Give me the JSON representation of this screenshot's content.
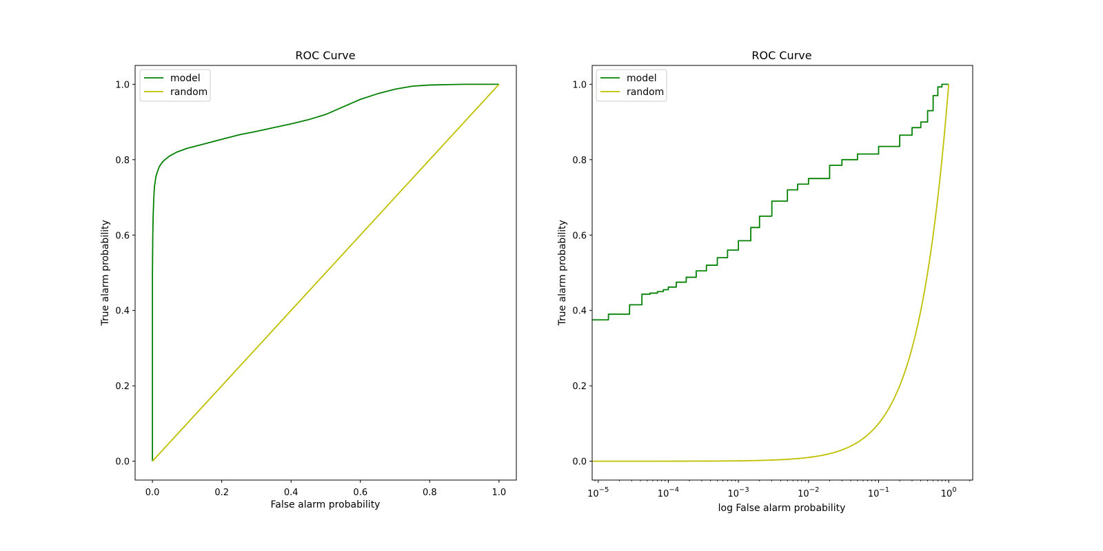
{
  "chart_data": [
    {
      "type": "line",
      "title": "ROC Curve",
      "xlabel": "False alarm probability",
      "ylabel": "True alarm probability",
      "xscale": "linear",
      "xlim": [
        -0.05,
        1.05
      ],
      "ylim": [
        -0.05,
        1.05
      ],
      "xticks": [
        0.0,
        0.2,
        0.4,
        0.6,
        0.8,
        1.0
      ],
      "xtick_labels": [
        "0.0",
        "0.2",
        "0.4",
        "0.6",
        "0.8",
        "1.0"
      ],
      "yticks": [
        0.0,
        0.2,
        0.4,
        0.6,
        0.8,
        1.0
      ],
      "ytick_labels": [
        "0.0",
        "0.2",
        "0.4",
        "0.6",
        "0.8",
        "1.0"
      ],
      "grid": false,
      "legend": "top-left",
      "series": [
        {
          "name": "model",
          "color": "#008000",
          "x": [
            0.0,
            0.0,
            0.0,
            0.001,
            0.002,
            0.004,
            0.006,
            0.01,
            0.015,
            0.02,
            0.03,
            0.04,
            0.05,
            0.07,
            0.1,
            0.15,
            0.2,
            0.25,
            0.3,
            0.35,
            0.4,
            0.45,
            0.5,
            0.55,
            0.6,
            0.65,
            0.7,
            0.75,
            0.8,
            0.85,
            0.9,
            0.95,
            1.0
          ],
          "y": [
            0.0,
            0.375,
            0.5,
            0.6,
            0.65,
            0.7,
            0.73,
            0.755,
            0.77,
            0.782,
            0.795,
            0.803,
            0.81,
            0.82,
            0.83,
            0.842,
            0.854,
            0.866,
            0.875,
            0.885,
            0.895,
            0.906,
            0.92,
            0.94,
            0.96,
            0.975,
            0.987,
            0.995,
            0.998,
            0.999,
            1.0,
            1.0,
            1.0
          ]
        },
        {
          "name": "random",
          "color": "#bfbf00",
          "x": [
            0.0,
            1.0
          ],
          "y": [
            0.0,
            1.0
          ]
        }
      ]
    },
    {
      "type": "line",
      "title": "ROC Curve",
      "xlabel": "log False alarm probability",
      "ylabel": "True alarm probability",
      "xscale": "log",
      "xlim": [
        8.2e-06,
        2.2
      ],
      "ylim": [
        -0.05,
        1.05
      ],
      "xticks": [
        1e-05,
        0.0001,
        0.001,
        0.01,
        0.1,
        1
      ],
      "xtick_labels": [
        {
          "base": "10",
          "exp": "−5"
        },
        {
          "base": "10",
          "exp": "−4"
        },
        {
          "base": "10",
          "exp": "−3"
        },
        {
          "base": "10",
          "exp": "−2"
        },
        {
          "base": "10",
          "exp": "−1"
        },
        {
          "base": "10",
          "exp": "0"
        }
      ],
      "yticks": [
        0.0,
        0.2,
        0.4,
        0.6,
        0.8,
        1.0
      ],
      "ytick_labels": [
        "0.0",
        "0.2",
        "0.4",
        "0.6",
        "0.8",
        "1.0"
      ],
      "grid": false,
      "legend": "top-left",
      "series": [
        {
          "name": "model",
          "color": "#008000",
          "step": true,
          "x": [
            8.2e-06,
            1.4e-05,
            2.8e-05,
            4.2e-05,
            5.5e-05,
            7e-05,
            8.5e-05,
            0.0001,
            0.00013,
            0.00018,
            0.00025,
            0.00035,
            0.0005,
            0.0007,
            0.001,
            0.0015,
            0.002,
            0.003,
            0.005,
            0.007,
            0.01,
            0.02,
            0.03,
            0.05,
            0.1,
            0.2,
            0.3,
            0.4,
            0.5,
            0.6,
            0.7,
            0.8,
            1.0
          ],
          "y": [
            0.375,
            0.39,
            0.415,
            0.443,
            0.446,
            0.45,
            0.455,
            0.462,
            0.475,
            0.488,
            0.505,
            0.52,
            0.54,
            0.56,
            0.585,
            0.62,
            0.65,
            0.69,
            0.72,
            0.735,
            0.75,
            0.785,
            0.8,
            0.815,
            0.835,
            0.865,
            0.885,
            0.9,
            0.93,
            0.97,
            0.993,
            1.0,
            1.0
          ]
        },
        {
          "name": "random",
          "color": "#bfbf00",
          "function": "y = x",
          "x": [
            8.2e-06,
            0.0001,
            0.001,
            0.01,
            0.03,
            0.1,
            0.2,
            0.3,
            0.5,
            0.7,
            1.0
          ],
          "y": [
            0.0,
            0.0,
            0.001,
            0.01,
            0.03,
            0.1,
            0.2,
            0.3,
            0.5,
            0.7,
            1.0
          ]
        }
      ]
    }
  ]
}
